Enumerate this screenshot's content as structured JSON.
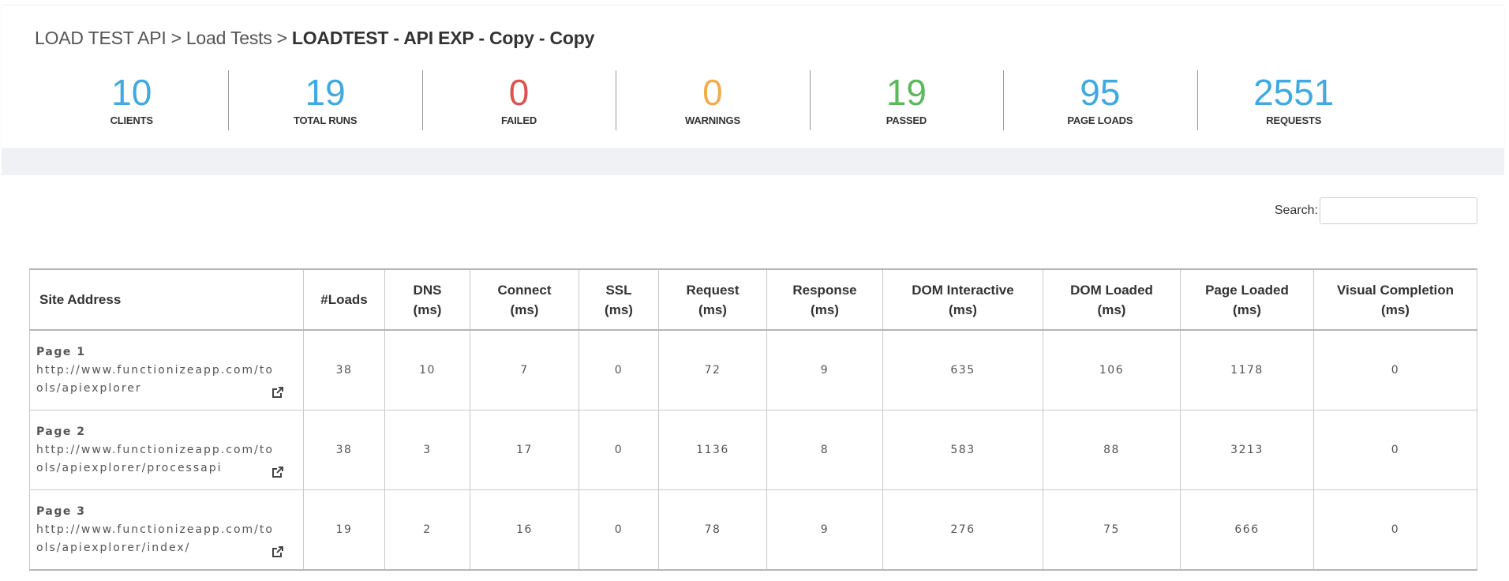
{
  "breadcrumb": {
    "root": "LOAD TEST API",
    "parent": "Load Tests",
    "current": "LOADTEST - API EXP - Copy - Copy",
    "separator": ">"
  },
  "stats": [
    {
      "value": "10",
      "label": "CLIENTS",
      "color": "#3fa9e0"
    },
    {
      "value": "19",
      "label": "TOTAL RUNS",
      "color": "#3fa9e0"
    },
    {
      "value": "0",
      "label": "FAILED",
      "color": "#d9534f"
    },
    {
      "value": "0",
      "label": "WARNINGS",
      "color": "#f0ad4e"
    },
    {
      "value": "19",
      "label": "PASSED",
      "color": "#5cb85c"
    },
    {
      "value": "95",
      "label": "PAGE LOADS",
      "color": "#3fa9e0"
    },
    {
      "value": "2551",
      "label": "REQUESTS",
      "color": "#3fa9e0"
    }
  ],
  "search": {
    "label": "Search:",
    "value": ""
  },
  "table": {
    "headers": [
      {
        "line1": "Site Address",
        "line2": ""
      },
      {
        "line1": "#Loads",
        "line2": ""
      },
      {
        "line1": "DNS",
        "line2": "(ms)"
      },
      {
        "line1": "Connect",
        "line2": "(ms)"
      },
      {
        "line1": "SSL",
        "line2": "(ms)"
      },
      {
        "line1": "Request",
        "line2": "(ms)"
      },
      {
        "line1": "Response",
        "line2": "(ms)"
      },
      {
        "line1": "DOM Interactive",
        "line2": "(ms)"
      },
      {
        "line1": "DOM Loaded",
        "line2": "(ms)"
      },
      {
        "line1": "Page Loaded",
        "line2": "(ms)"
      },
      {
        "line1": "Visual Completion",
        "line2": "(ms)"
      }
    ],
    "rows": [
      {
        "page": "Page 1",
        "url": "http://www.functionizeapp.com/tools/apiexplorer",
        "loads": "38",
        "dns": "10",
        "connect": "7",
        "ssl": "0",
        "request": "72",
        "response": "9",
        "dom_interactive": "635",
        "dom_loaded": "106",
        "page_loaded": "1178",
        "visual_completion": "0"
      },
      {
        "page": "Page 2",
        "url": "http://www.functionizeapp.com/tools/apiexplorer/processapi",
        "loads": "38",
        "dns": "3",
        "connect": "17",
        "ssl": "0",
        "request": "1136",
        "response": "8",
        "dom_interactive": "583",
        "dom_loaded": "88",
        "page_loaded": "3213",
        "visual_completion": "0"
      },
      {
        "page": "Page 3",
        "url": "http://www.functionizeapp.com/tools/apiexplorer/index/",
        "loads": "19",
        "dns": "2",
        "connect": "16",
        "ssl": "0",
        "request": "78",
        "response": "9",
        "dom_interactive": "276",
        "dom_loaded": "75",
        "page_loaded": "666",
        "visual_completion": "0"
      }
    ],
    "external_link_icon": "external-link-icon"
  }
}
